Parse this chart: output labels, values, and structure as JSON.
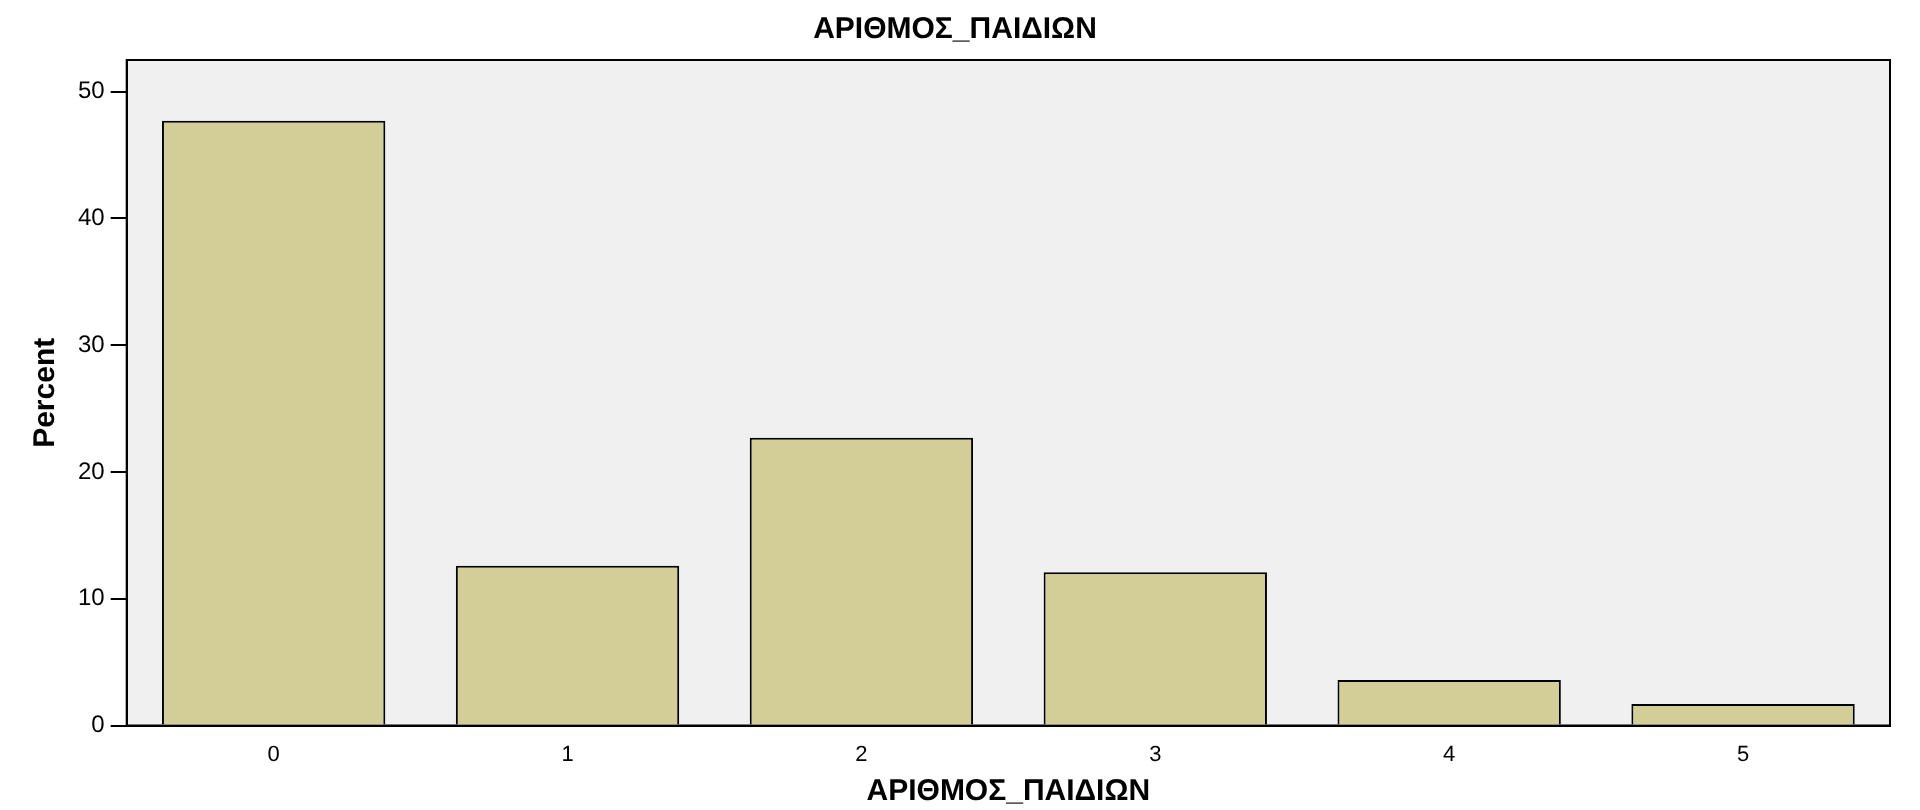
{
  "chart_data": {
    "type": "bar",
    "title": "ΑΡΙΘΜΟΣ_ΠΑΙΔΙΩΝ",
    "xlabel": "ΑΡΙΘΜΟΣ_ΠΑΙΔΙΩΝ",
    "ylabel": "Percent",
    "categories": [
      "0",
      "1",
      "2",
      "3",
      "4",
      "5"
    ],
    "values": [
      47.7,
      12.6,
      22.7,
      12.1,
      3.6,
      1.7
    ],
    "color": "#d3ce97",
    "ylim": [
      0,
      52.5
    ],
    "yticks": [
      0,
      10,
      20,
      30,
      40,
      50
    ],
    "grid": false,
    "legend": false
  }
}
